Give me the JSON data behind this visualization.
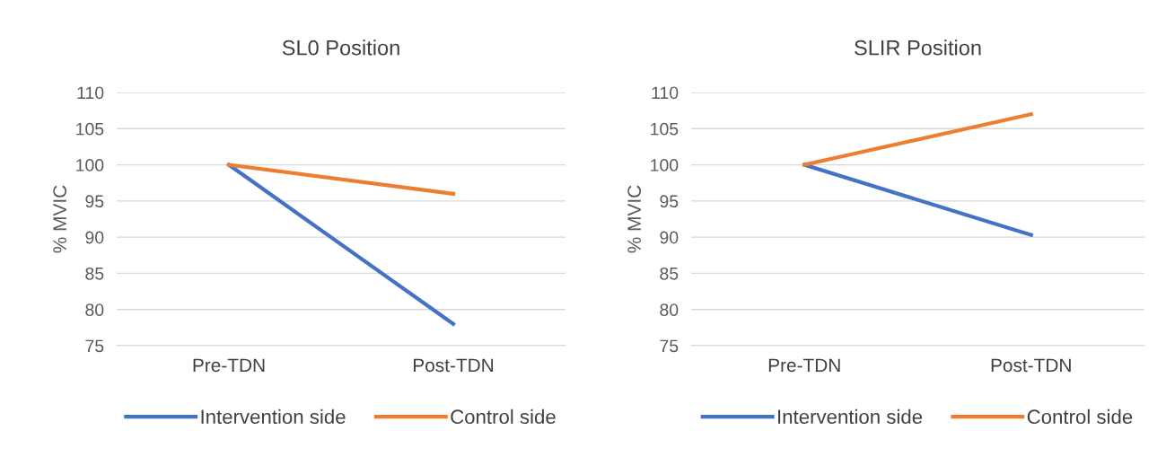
{
  "chart_data": [
    {
      "type": "line",
      "title": "SL0 Position",
      "ylabel": "% MVIC",
      "categories": [
        "Pre-TDN",
        "Post-TDN"
      ],
      "ylim": [
        75,
        110
      ],
      "yticks": [
        75,
        80,
        85,
        90,
        95,
        100,
        105,
        110
      ],
      "grid": "y",
      "legend": "bottom",
      "marker": "none",
      "line_style": "solid",
      "series": [
        {
          "name": "Intervention side",
          "color": "#4472c4",
          "values": [
            100,
            78
          ]
        },
        {
          "name": "Control side",
          "color": "#ed7d31",
          "values": [
            100,
            96
          ]
        }
      ]
    },
    {
      "type": "line",
      "title": "SLIR Position",
      "ylabel": "% MVIC",
      "categories": [
        "Pre-TDN",
        "Post-TDN"
      ],
      "ylim": [
        75,
        110
      ],
      "yticks": [
        75,
        80,
        85,
        90,
        95,
        100,
        105,
        110
      ],
      "grid": "y",
      "legend": "bottom",
      "marker": "none",
      "line_style": "solid",
      "series": [
        {
          "name": "Intervention side",
          "color": "#4472c4",
          "values": [
            100,
            90.3
          ]
        },
        {
          "name": "Control side",
          "color": "#ed7d31",
          "values": [
            100,
            107
          ]
        }
      ]
    }
  ]
}
